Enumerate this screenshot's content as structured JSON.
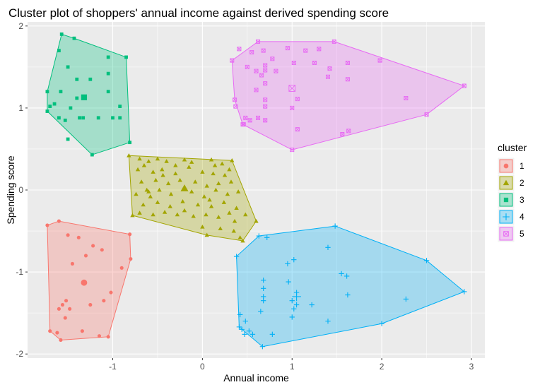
{
  "chart_data": {
    "type": "scatter",
    "title": "Cluster plot of shoppers' annual income against derived spending score",
    "xlabel": "Annual income",
    "ylabel": "Spending score",
    "xlim": [
      -1.95,
      3.15
    ],
    "ylim": [
      -2.05,
      2.05
    ],
    "x_ticks": [
      -1,
      0,
      1,
      2,
      3
    ],
    "y_ticks": [
      -2,
      -1,
      0,
      1,
      2
    ],
    "x_tick_labels": [
      "-1",
      "0",
      "1",
      "2",
      "3"
    ],
    "y_tick_labels": [
      "-2",
      "-1",
      "0",
      "1",
      "2"
    ],
    "grid": true,
    "legend_title": "cluster",
    "legend_position": "right",
    "series": [
      {
        "name": "1",
        "shape": "circle",
        "color": "#F8766D",
        "hull": [
          [
            -1.73,
            -0.43
          ],
          [
            -1.6,
            -0.38
          ],
          [
            -0.81,
            -0.54
          ],
          [
            -0.8,
            -0.84
          ],
          [
            -1.05,
            -1.79
          ],
          [
            -1.58,
            -1.83
          ],
          [
            -1.7,
            -1.72
          ]
        ],
        "center": [
          -1.32,
          -1.13
        ],
        "points": [
          [
            -1.73,
            -0.43
          ],
          [
            -1.6,
            -0.38
          ],
          [
            -0.81,
            -0.54
          ],
          [
            -0.8,
            -0.84
          ],
          [
            -1.05,
            -1.79
          ],
          [
            -1.58,
            -1.83
          ],
          [
            -1.7,
            -1.72
          ],
          [
            -1.5,
            -0.55
          ],
          [
            -1.38,
            -0.58
          ],
          [
            -1.22,
            -0.68
          ],
          [
            -1.12,
            -0.73
          ],
          [
            -0.9,
            -0.95
          ],
          [
            -1.45,
            -0.9
          ],
          [
            -1.3,
            -0.8
          ],
          [
            -1.02,
            -1.25
          ],
          [
            -1.1,
            -1.35
          ],
          [
            -1.25,
            -1.4
          ],
          [
            -1.52,
            -1.35
          ],
          [
            -1.56,
            -1.4
          ],
          [
            -1.48,
            -1.45
          ],
          [
            -1.6,
            -1.45
          ],
          [
            -1.53,
            -1.56
          ],
          [
            -1.62,
            -1.74
          ],
          [
            -1.34,
            -1.72
          ],
          [
            -1.15,
            -1.78
          ]
        ]
      },
      {
        "name": "2",
        "shape": "triangle",
        "color": "#A3A500",
        "hull": [
          [
            -0.82,
            0.42
          ],
          [
            0.33,
            0.36
          ],
          [
            0.6,
            -0.38
          ],
          [
            0.45,
            -0.62
          ],
          [
            0.05,
            -0.55
          ],
          [
            -0.78,
            -0.31
          ]
        ],
        "center": [
          -0.2,
          0.02
        ],
        "points": [
          [
            -0.82,
            0.42
          ],
          [
            0.33,
            0.36
          ],
          [
            0.6,
            -0.38
          ],
          [
            0.45,
            -0.62
          ],
          [
            0.05,
            -0.55
          ],
          [
            -0.78,
            -0.31
          ],
          [
            -0.7,
            0.38
          ],
          [
            -0.6,
            0.35
          ],
          [
            -0.5,
            0.38
          ],
          [
            -0.4,
            0.35
          ],
          [
            -0.2,
            0.37
          ],
          [
            0.1,
            0.37
          ],
          [
            0.22,
            0.32
          ],
          [
            -0.72,
            0.25
          ],
          [
            -0.55,
            0.22
          ],
          [
            -0.45,
            0.25
          ],
          [
            -0.3,
            0.2
          ],
          [
            -0.15,
            0.28
          ],
          [
            0.0,
            0.22
          ],
          [
            0.12,
            0.2
          ],
          [
            0.3,
            0.25
          ],
          [
            -0.68,
            0.1
          ],
          [
            -0.52,
            0.12
          ],
          [
            -0.38,
            0.08
          ],
          [
            -0.25,
            0.12
          ],
          [
            -0.08,
            0.1
          ],
          [
            0.05,
            0.05
          ],
          [
            0.18,
            0.08
          ],
          [
            0.32,
            0.1
          ],
          [
            -0.74,
            -0.05
          ],
          [
            -0.6,
            -0.02
          ],
          [
            -0.48,
            0.0
          ],
          [
            -0.35,
            -0.05
          ],
          [
            -0.12,
            -0.02
          ],
          [
            0.02,
            -0.08
          ],
          [
            0.15,
            0.0
          ],
          [
            0.28,
            -0.05
          ],
          [
            0.4,
            -0.02
          ],
          [
            -0.66,
            -0.18
          ],
          [
            -0.5,
            -0.15
          ],
          [
            -0.36,
            -0.2
          ],
          [
            -0.22,
            -0.14
          ],
          [
            -0.05,
            -0.18
          ],
          [
            0.1,
            -0.2
          ],
          [
            0.24,
            -0.15
          ],
          [
            0.38,
            -0.22
          ],
          [
            -0.7,
            -0.28
          ],
          [
            -0.55,
            -0.3
          ],
          [
            -0.42,
            -0.27
          ],
          [
            -0.28,
            -0.3
          ],
          [
            -0.1,
            -0.32
          ],
          [
            0.04,
            -0.3
          ],
          [
            0.18,
            -0.33
          ],
          [
            0.3,
            -0.28
          ],
          [
            0.48,
            -0.3
          ],
          [
            0.0,
            -0.45
          ],
          [
            0.2,
            -0.47
          ],
          [
            0.35,
            -0.5
          ],
          [
            0.42,
            -0.58
          ],
          [
            -0.65,
            0.3
          ],
          [
            -0.3,
            0.3
          ],
          [
            0.25,
            0.18
          ],
          [
            -0.58,
            -0.08
          ],
          [
            0.36,
            -0.38
          ],
          [
            -0.2,
            -0.25
          ],
          [
            0.08,
            -0.12
          ],
          [
            -0.44,
            0.18
          ],
          [
            -0.12,
            0.34
          ],
          [
            0.14,
            0.3
          ],
          [
            -0.62,
            0.0
          ]
        ]
      },
      {
        "name": "3",
        "shape": "square",
        "color": "#00BF7D",
        "hull": [
          [
            -1.57,
            1.9
          ],
          [
            -1.43,
            1.85
          ],
          [
            -0.85,
            1.62
          ],
          [
            -0.81,
            0.58
          ],
          [
            -1.23,
            0.43
          ],
          [
            -1.73,
            0.96
          ],
          [
            -1.73,
            1.2
          ]
        ],
        "center": [
          -1.32,
          1.13
        ],
        "points": [
          [
            -1.57,
            1.9
          ],
          [
            -1.43,
            1.85
          ],
          [
            -0.85,
            1.62
          ],
          [
            -0.81,
            0.58
          ],
          [
            -1.23,
            0.43
          ],
          [
            -1.73,
            0.96
          ],
          [
            -1.73,
            1.2
          ],
          [
            -1.6,
            1.7
          ],
          [
            -1.5,
            1.5
          ],
          [
            -1.4,
            1.35
          ],
          [
            -1.25,
            1.35
          ],
          [
            -1.05,
            1.2
          ],
          [
            -1.05,
            1.42
          ],
          [
            -1.05,
            1.62
          ],
          [
            -1.58,
            1.2
          ],
          [
            -1.65,
            1.05
          ],
          [
            -1.7,
            1.02
          ],
          [
            -1.4,
            1.12
          ],
          [
            -1.37,
            0.88
          ],
          [
            -1.6,
            0.88
          ],
          [
            -1.47,
            1.0
          ],
          [
            -1.53,
            0.85
          ],
          [
            -1.33,
            0.88
          ],
          [
            -1.16,
            0.88
          ],
          [
            -1.0,
            0.88
          ],
          [
            -0.92,
            0.88
          ],
          [
            -0.92,
            1.02
          ],
          [
            -1.5,
            0.62
          ]
        ]
      },
      {
        "name": "4",
        "shape": "plus",
        "color": "#00B0F6",
        "hull": [
          [
            0.63,
            -0.56
          ],
          [
            1.48,
            -0.44
          ],
          [
            2.5,
            -0.86
          ],
          [
            2.92,
            -1.24
          ],
          [
            2.0,
            -1.63
          ],
          [
            0.67,
            -1.91
          ],
          [
            0.41,
            -1.67
          ],
          [
            0.38,
            -0.81
          ]
        ],
        "center": [
          1.05,
          -1.3
        ],
        "points": [
          [
            0.63,
            -0.56
          ],
          [
            1.48,
            -0.44
          ],
          [
            2.5,
            -0.86
          ],
          [
            2.92,
            -1.24
          ],
          [
            2.0,
            -1.63
          ],
          [
            0.67,
            -1.91
          ],
          [
            0.41,
            -1.67
          ],
          [
            0.38,
            -0.81
          ],
          [
            0.72,
            -0.58
          ],
          [
            1.4,
            -0.7
          ],
          [
            0.95,
            -0.9
          ],
          [
            1.02,
            -0.85
          ],
          [
            1.55,
            -1.02
          ],
          [
            1.61,
            -1.05
          ],
          [
            0.96,
            -1.12
          ],
          [
            0.68,
            -1.1
          ],
          [
            0.68,
            -1.2
          ],
          [
            0.68,
            -1.3
          ],
          [
            0.68,
            -1.35
          ],
          [
            1.05,
            -1.25
          ],
          [
            1.0,
            -1.35
          ],
          [
            1.05,
            -1.4
          ],
          [
            1.62,
            -1.28
          ],
          [
            2.27,
            -1.33
          ],
          [
            1.22,
            -1.4
          ],
          [
            1.02,
            -1.45
          ],
          [
            1.0,
            -1.55
          ],
          [
            0.65,
            -1.48
          ],
          [
            0.42,
            -1.52
          ],
          [
            0.48,
            -1.6
          ],
          [
            0.44,
            -1.7
          ],
          [
            0.52,
            -1.72
          ],
          [
            0.47,
            -1.76
          ],
          [
            0.56,
            -1.76
          ],
          [
            0.78,
            -1.76
          ],
          [
            1.4,
            -1.6
          ]
        ]
      },
      {
        "name": "5",
        "shape": "square-x",
        "color": "#E76BF3",
        "hull": [
          [
            0.62,
            1.81
          ],
          [
            1.47,
            1.81
          ],
          [
            2.92,
            1.27
          ],
          [
            2.5,
            0.92
          ],
          [
            1.0,
            0.49
          ],
          [
            0.45,
            0.8
          ],
          [
            0.36,
            1.1
          ],
          [
            0.33,
            1.58
          ]
        ],
        "center": [
          1.0,
          1.24
        ],
        "points": [
          [
            0.62,
            1.81
          ],
          [
            1.47,
            1.81
          ],
          [
            2.92,
            1.27
          ],
          [
            2.5,
            0.92
          ],
          [
            1.0,
            0.49
          ],
          [
            0.45,
            0.8
          ],
          [
            0.36,
            1.1
          ],
          [
            0.33,
            1.58
          ],
          [
            0.41,
            1.72
          ],
          [
            0.55,
            1.68
          ],
          [
            0.68,
            1.7
          ],
          [
            0.78,
            1.6
          ],
          [
            0.95,
            1.73
          ],
          [
            1.15,
            1.7
          ],
          [
            1.25,
            1.55
          ],
          [
            1.3,
            1.72
          ],
          [
            1.42,
            1.48
          ],
          [
            1.62,
            1.55
          ],
          [
            1.98,
            1.58
          ],
          [
            0.7,
            1.52
          ],
          [
            0.82,
            1.45
          ],
          [
            0.66,
            1.4
          ],
          [
            0.6,
            1.45
          ],
          [
            0.7,
            1.46
          ],
          [
            0.5,
            1.5
          ],
          [
            1.02,
            1.55
          ],
          [
            1.4,
            1.38
          ],
          [
            1.62,
            1.35
          ],
          [
            0.7,
            1.3
          ],
          [
            0.6,
            1.22
          ],
          [
            0.7,
            1.1
          ],
          [
            1.06,
            1.11
          ],
          [
            0.7,
            1.02
          ],
          [
            0.37,
            1.02
          ],
          [
            0.48,
            0.88
          ],
          [
            0.53,
            0.85
          ],
          [
            0.62,
            0.88
          ],
          [
            0.7,
            0.85
          ],
          [
            0.46,
            0.8
          ],
          [
            1.06,
            0.74
          ],
          [
            1.56,
            0.68
          ],
          [
            1.63,
            0.72
          ],
          [
            2.27,
            1.12
          ],
          [
            1.0,
            1.0
          ]
        ]
      }
    ]
  }
}
